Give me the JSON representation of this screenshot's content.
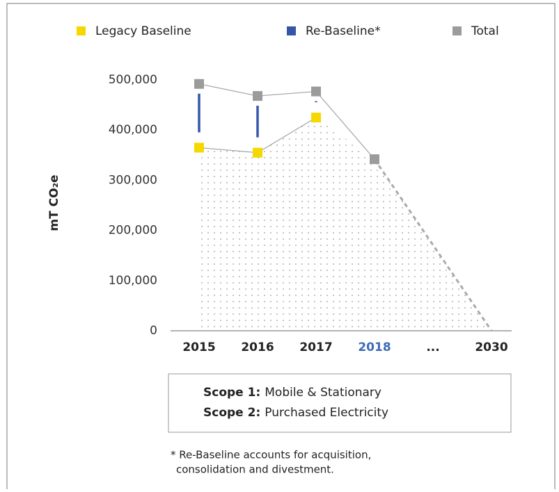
{
  "chart_data": {
    "type": "line",
    "categories": [
      "2015",
      "2016",
      "2017",
      "2018",
      "...",
      "2030"
    ],
    "xtick_colors": [
      "#222222",
      "#222222",
      "#222222",
      "#3d6bb5",
      "#222222",
      "#222222"
    ],
    "series": [
      {
        "name": "Legacy Baseline",
        "color": "#f5d800",
        "values": [
          365000,
          355000,
          425000,
          null,
          null,
          null
        ]
      },
      {
        "name": "Re-Baseline*",
        "color": "#3556a8",
        "stacked_on": 0,
        "values": [
          127000,
          113000,
          52000,
          null,
          null,
          null
        ]
      },
      {
        "name": "Total",
        "color": "#9b9b9b",
        "values": [
          492000,
          468000,
          477000,
          342000,
          null,
          0
        ]
      }
    ],
    "ylabel": "mT CO₂e",
    "ylim": [
      0,
      500000
    ],
    "yticks": [
      0,
      {
        "value": 100000,
        "label": "100,000"
      },
      {
        "value": 200000,
        "label": "200,000"
      },
      {
        "value": 300000,
        "label": "300,000"
      },
      {
        "value": 400000,
        "label": "400,000"
      },
      {
        "value": 500000,
        "label": "500,000"
      }
    ],
    "scopes": [
      {
        "label": "Scope 1:",
        "text": "Mobile & Stationary"
      },
      {
        "label": "Scope 2:",
        "text": "Purchased Electricity"
      }
    ],
    "footnote": [
      "* Re-Baseline accounts for acquisition,",
      "consolidation and divestment."
    ]
  }
}
